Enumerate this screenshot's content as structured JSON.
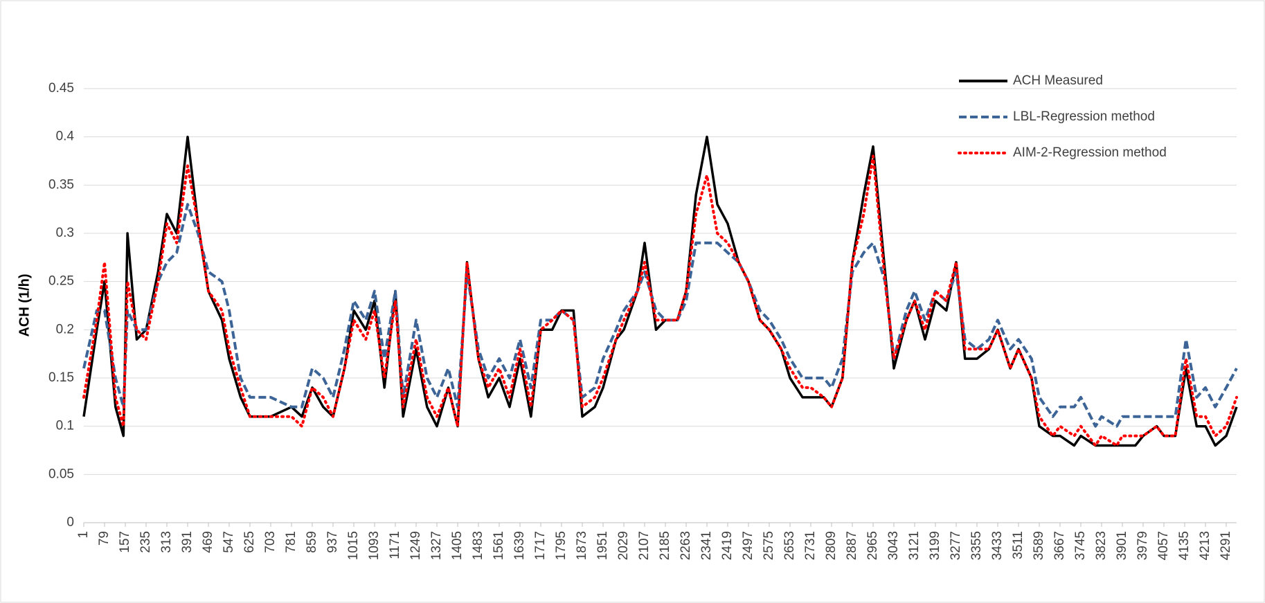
{
  "chart_data": {
    "type": "line",
    "y_label": "ACH (1/h)",
    "x": [
      1,
      50,
      79,
      120,
      150,
      165,
      200,
      235,
      280,
      313,
      350,
      391,
      430,
      469,
      520,
      547,
      590,
      625,
      703,
      781,
      820,
      859,
      900,
      937,
      980,
      1015,
      1060,
      1093,
      1130,
      1171,
      1200,
      1249,
      1290,
      1327,
      1370,
      1405,
      1440,
      1483,
      1520,
      1561,
      1600,
      1639,
      1680,
      1717,
      1760,
      1795,
      1840,
      1873,
      1920,
      1951,
      2000,
      2029,
      2080,
      2107,
      2150,
      2185,
      2230,
      2263,
      2300,
      2341,
      2380,
      2419,
      2460,
      2497,
      2540,
      2575,
      2620,
      2653,
      2700,
      2731,
      2780,
      2809,
      2850,
      2887,
      2930,
      2965,
      3010,
      3043,
      3090,
      3121,
      3160,
      3199,
      3240,
      3277,
      3310,
      3355,
      3400,
      3433,
      3480,
      3511,
      3560,
      3589,
      3640,
      3667,
      3720,
      3745,
      3800,
      3823,
      3880,
      3901,
      3950,
      3979,
      4030,
      4057,
      4100,
      4140,
      4180,
      4213,
      4250,
      4291,
      4330
    ],
    "series": [
      {
        "name": "ACH Measured",
        "color": "#000000",
        "line_style": "solid",
        "values": [
          0.11,
          0.2,
          0.25,
          0.12,
          0.09,
          0.3,
          0.19,
          0.2,
          0.26,
          0.32,
          0.3,
          0.4,
          0.31,
          0.24,
          0.21,
          0.17,
          0.13,
          0.11,
          0.11,
          0.12,
          0.11,
          0.14,
          0.12,
          0.11,
          0.16,
          0.22,
          0.2,
          0.23,
          0.14,
          0.24,
          0.11,
          0.18,
          0.12,
          0.1,
          0.14,
          0.1,
          0.27,
          0.17,
          0.13,
          0.15,
          0.12,
          0.17,
          0.11,
          0.2,
          0.2,
          0.22,
          0.22,
          0.11,
          0.12,
          0.14,
          0.19,
          0.2,
          0.24,
          0.29,
          0.2,
          0.21,
          0.21,
          0.24,
          0.34,
          0.4,
          0.33,
          0.31,
          0.27,
          0.25,
          0.21,
          0.2,
          0.18,
          0.15,
          0.13,
          0.13,
          0.13,
          0.12,
          0.15,
          0.27,
          0.34,
          0.39,
          0.26,
          0.16,
          0.21,
          0.23,
          0.19,
          0.23,
          0.22,
          0.27,
          0.17,
          0.17,
          0.18,
          0.2,
          0.16,
          0.18,
          0.15,
          0.1,
          0.09,
          0.09,
          0.08,
          0.09,
          0.08,
          0.08,
          0.08,
          0.08,
          0.08,
          0.09,
          0.1,
          0.09,
          0.09,
          0.16,
          0.1,
          0.1,
          0.08,
          0.09,
          0.12
        ]
      },
      {
        "name": "LBL-Regression method",
        "color": "#3c6497",
        "line_style": "dashed",
        "values": [
          0.16,
          0.22,
          0.22,
          0.15,
          0.12,
          0.22,
          0.2,
          0.2,
          0.25,
          0.27,
          0.28,
          0.33,
          0.3,
          0.26,
          0.25,
          0.22,
          0.15,
          0.13,
          0.13,
          0.12,
          0.12,
          0.16,
          0.15,
          0.13,
          0.18,
          0.23,
          0.21,
          0.24,
          0.17,
          0.24,
          0.13,
          0.21,
          0.15,
          0.13,
          0.16,
          0.12,
          0.26,
          0.18,
          0.15,
          0.17,
          0.15,
          0.19,
          0.14,
          0.21,
          0.21,
          0.22,
          0.21,
          0.13,
          0.14,
          0.17,
          0.2,
          0.22,
          0.24,
          0.26,
          0.22,
          0.21,
          0.21,
          0.23,
          0.29,
          0.29,
          0.29,
          0.28,
          0.27,
          0.25,
          0.22,
          0.21,
          0.19,
          0.17,
          0.15,
          0.15,
          0.15,
          0.14,
          0.17,
          0.26,
          0.28,
          0.29,
          0.25,
          0.17,
          0.22,
          0.24,
          0.21,
          0.24,
          0.23,
          0.26,
          0.19,
          0.18,
          0.19,
          0.21,
          0.18,
          0.19,
          0.17,
          0.13,
          0.11,
          0.12,
          0.12,
          0.13,
          0.1,
          0.11,
          0.1,
          0.11,
          0.11,
          0.11,
          0.11,
          0.11,
          0.11,
          0.19,
          0.13,
          0.14,
          0.12,
          0.14,
          0.16
        ]
      },
      {
        "name": "AIM-2-Regression method",
        "color": "#ff0000",
        "line_style": "dotted",
        "values": [
          0.13,
          0.21,
          0.27,
          0.13,
          0.1,
          0.25,
          0.2,
          0.19,
          0.25,
          0.31,
          0.29,
          0.37,
          0.31,
          0.24,
          0.22,
          0.18,
          0.14,
          0.11,
          0.11,
          0.11,
          0.1,
          0.14,
          0.13,
          0.11,
          0.16,
          0.21,
          0.19,
          0.22,
          0.15,
          0.23,
          0.12,
          0.19,
          0.13,
          0.11,
          0.14,
          0.1,
          0.27,
          0.17,
          0.14,
          0.16,
          0.13,
          0.18,
          0.12,
          0.2,
          0.21,
          0.22,
          0.21,
          0.12,
          0.13,
          0.15,
          0.19,
          0.21,
          0.24,
          0.27,
          0.21,
          0.21,
          0.21,
          0.24,
          0.32,
          0.36,
          0.3,
          0.29,
          0.27,
          0.25,
          0.21,
          0.2,
          0.18,
          0.16,
          0.14,
          0.14,
          0.13,
          0.12,
          0.15,
          0.27,
          0.32,
          0.38,
          0.25,
          0.17,
          0.21,
          0.23,
          0.2,
          0.24,
          0.23,
          0.27,
          0.18,
          0.18,
          0.18,
          0.2,
          0.16,
          0.18,
          0.15,
          0.11,
          0.09,
          0.1,
          0.09,
          0.1,
          0.08,
          0.09,
          0.08,
          0.09,
          0.09,
          0.09,
          0.1,
          0.09,
          0.09,
          0.17,
          0.11,
          0.11,
          0.09,
          0.1,
          0.13
        ]
      }
    ],
    "xlim": [
      1,
      4330
    ],
    "xticks": [
      1,
      79,
      157,
      235,
      313,
      391,
      469,
      547,
      625,
      703,
      781,
      859,
      937,
      1015,
      1093,
      1171,
      1249,
      1327,
      1405,
      1483,
      1561,
      1639,
      1717,
      1795,
      1873,
      1951,
      2029,
      2107,
      2185,
      2263,
      2341,
      2419,
      2497,
      2575,
      2653,
      2731,
      2809,
      2887,
      2965,
      3043,
      3121,
      3199,
      3277,
      3355,
      3433,
      3511,
      3589,
      3667,
      3745,
      3823,
      3901,
      3979,
      4057,
      4135,
      4213,
      4291
    ],
    "ylim": [
      0,
      0.45
    ],
    "yticks": [
      0,
      0.05,
      0.1,
      0.15,
      0.2,
      0.25,
      0.3,
      0.35,
      0.4,
      0.45
    ],
    "grid": true,
    "legend": "top-right"
  }
}
